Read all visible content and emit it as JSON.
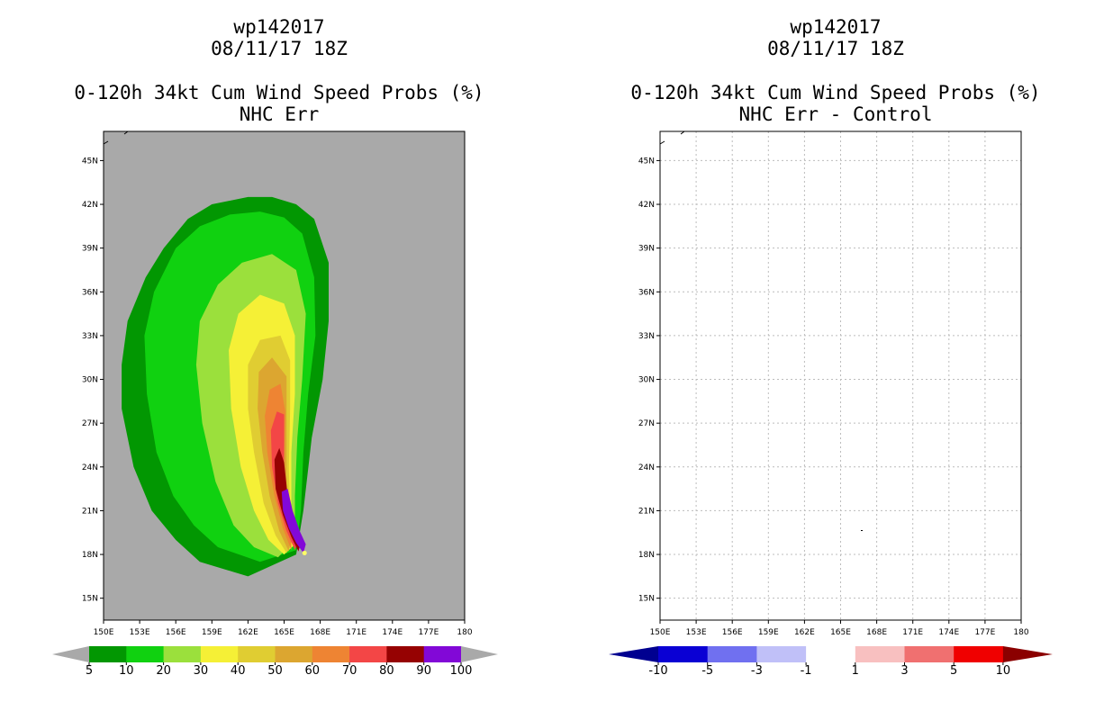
{
  "chart_data": [
    {
      "type": "filled_contour_map",
      "id": "left",
      "title_lines": [
        "wp142017",
        "08/11/17 18Z"
      ],
      "subtitle_lines": [
        "0-120h 34kt Cum Wind Speed Probs (%)",
        "NHC Err"
      ],
      "x_ticks": [
        "150E",
        "153E",
        "156E",
        "159E",
        "162E",
        "165E",
        "168E",
        "171E",
        "174E",
        "177E",
        "180"
      ],
      "y_ticks": [
        "15N",
        "18N",
        "21N",
        "24N",
        "27N",
        "30N",
        "33N",
        "36N",
        "39N",
        "42N",
        "45N"
      ],
      "lon_range": [
        150,
        180
      ],
      "lat_range": [
        13.5,
        47
      ],
      "background": "#a9a9a9",
      "storm_position": {
        "lon": 166.7,
        "lat": 18.1
      },
      "colorbar": {
        "labels": [
          "5",
          "10",
          "20",
          "30",
          "40",
          "50",
          "60",
          "70",
          "80",
          "90",
          "100"
        ],
        "colors": [
          "#029702",
          "#10d110",
          "#9be03c",
          "#f5f036",
          "#e0cd32",
          "#dca630",
          "#ee8433",
          "#f34646",
          "#960202",
          "#8208d7"
        ],
        "end_color": "#a9a9a9"
      },
      "contour_levels": [
        5,
        10,
        20,
        30,
        40,
        50,
        60,
        70,
        80,
        90
      ]
    },
    {
      "type": "difference_map",
      "id": "right",
      "title_lines": [
        "wp142017",
        "08/11/17 18Z"
      ],
      "subtitle_lines": [
        "0-120h 34kt Cum Wind Speed Probs (%)",
        "NHC Err - Control"
      ],
      "x_ticks": [
        "150E",
        "153E",
        "156E",
        "159E",
        "162E",
        "165E",
        "168E",
        "171E",
        "174E",
        "177E",
        "180"
      ],
      "y_ticks": [
        "15N",
        "18N",
        "21N",
        "24N",
        "27N",
        "30N",
        "33N",
        "36N",
        "39N",
        "42N",
        "45N"
      ],
      "lon_range": [
        150,
        180
      ],
      "lat_range": [
        13.5,
        47
      ],
      "grid": true,
      "colorbar": {
        "labels": [
          "-10",
          "-5",
          "-3",
          "-1",
          "1",
          "3",
          "5",
          "10"
        ],
        "colors": [
          "#0a00d4",
          "#7070f0",
          "#c0c0f8",
          "#ffffff",
          "#f8c0c0",
          "#f07070",
          "#f00000"
        ],
        "low_end_color": "#000090",
        "high_end_color": "#8b0000"
      }
    }
  ]
}
